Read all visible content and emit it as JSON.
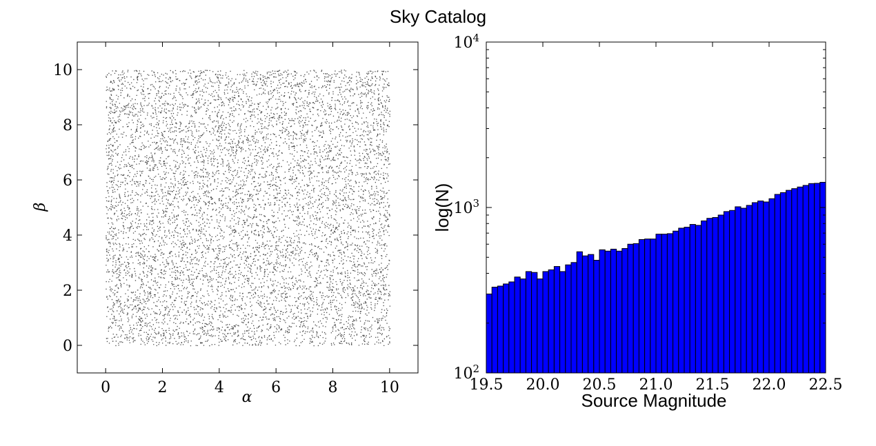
{
  "figure": {
    "title": "Sky Catalog"
  },
  "chart_data": [
    {
      "type": "scatter",
      "xlabel": "α",
      "ylabel": "β",
      "xlim": [
        -1,
        11
      ],
      "ylim": [
        -1,
        11
      ],
      "xticks": [
        0,
        2,
        4,
        6,
        8,
        10
      ],
      "yticks": [
        0,
        2,
        4,
        6,
        8,
        10
      ],
      "point_color": "#000000",
      "point_distribution": {
        "kind": "uniform",
        "x_range": [
          0,
          10
        ],
        "y_range": [
          0,
          10
        ]
      }
    },
    {
      "type": "bar",
      "xlabel": "Source Magnitude",
      "ylabel": "log(N)",
      "xlim": [
        19.5,
        22.5
      ],
      "ylim": [
        100,
        10000
      ],
      "y_scale": "log",
      "xticks": [
        "19.5",
        "20.0",
        "20.5",
        "21.0",
        "21.5",
        "22.0",
        "22.5"
      ],
      "yticks": [
        {
          "value": 100,
          "base": "10",
          "exp": "2"
        },
        {
          "value": 1000,
          "base": "10",
          "exp": "3"
        },
        {
          "value": 10000,
          "base": "10",
          "exp": "4"
        }
      ],
      "bar_color": "#0000ff",
      "bin_start": 19.5,
      "bin_width": 0.05,
      "values": [
        300,
        330,
        335,
        345,
        355,
        380,
        370,
        410,
        405,
        370,
        410,
        420,
        440,
        410,
        450,
        465,
        540,
        510,
        520,
        480,
        555,
        545,
        560,
        545,
        565,
        600,
        605,
        640,
        645,
        645,
        690,
        690,
        695,
        720,
        750,
        760,
        790,
        780,
        830,
        860,
        870,
        900,
        945,
        960,
        1010,
        990,
        1030,
        1070,
        1095,
        1080,
        1130,
        1200,
        1230,
        1270,
        1300,
        1330,
        1360,
        1395,
        1400,
        1420
      ]
    }
  ]
}
